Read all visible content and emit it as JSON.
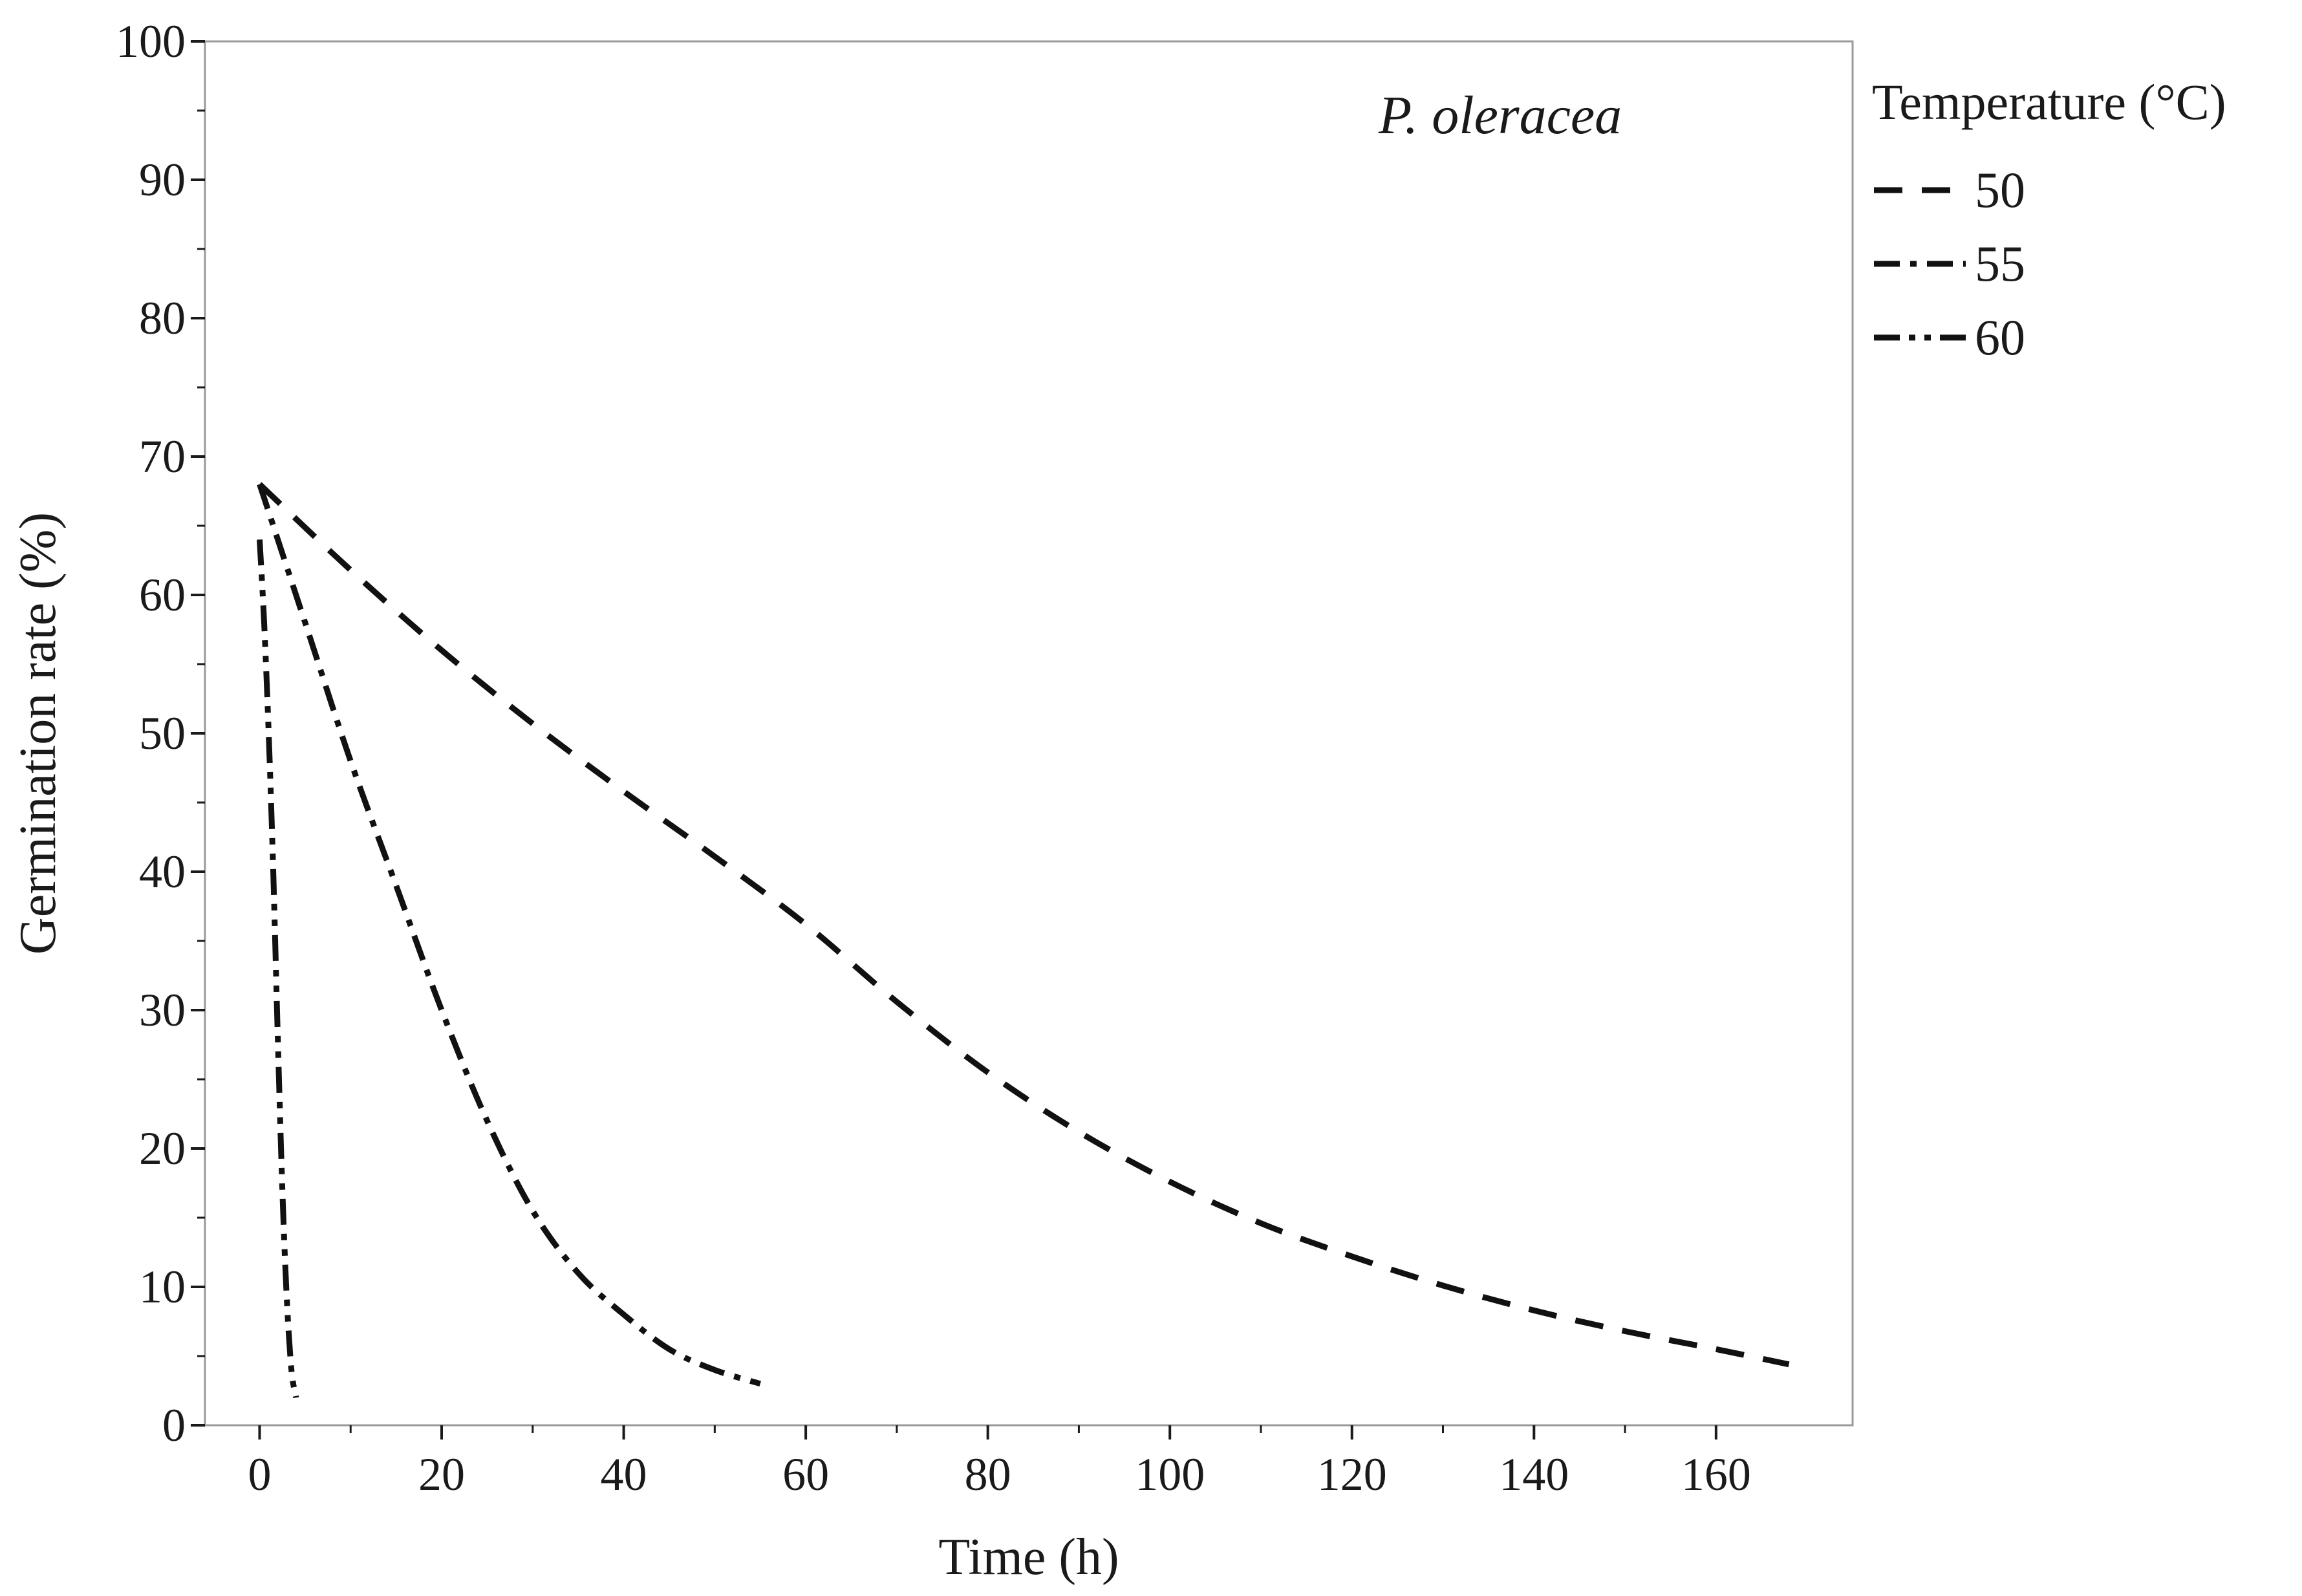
{
  "chart_data": {
    "type": "line",
    "title": "",
    "annotation": "P. oleracea",
    "xlabel": "Time (h)",
    "ylabel": "Germination rate (%)",
    "xlim": [
      -6,
      175
    ],
    "ylim": [
      0,
      100
    ],
    "xticks": [
      0,
      20,
      40,
      60,
      80,
      100,
      120,
      140,
      160
    ],
    "yticks": [
      0,
      10,
      20,
      30,
      40,
      50,
      60,
      70,
      80,
      90,
      100
    ],
    "legend": {
      "title": "Temperature (°C)",
      "placement": "right"
    },
    "series": [
      {
        "name": "50",
        "style": "dash",
        "x": [
          0,
          10,
          20,
          30,
          40,
          50,
          60,
          70,
          80,
          90,
          100,
          110,
          120,
          130,
          140,
          150,
          160,
          168
        ],
        "y": [
          68,
          61.8,
          56,
          50.7,
          45.8,
          41.1,
          36.2,
          30.6,
          25.5,
          21.2,
          17.6,
          14.6,
          12.2,
          10.1,
          8.3,
          6.8,
          5.5,
          4.4
        ]
      },
      {
        "name": "55",
        "style": "dash-dot",
        "x": [
          0,
          5,
          10,
          15,
          20,
          25,
          30,
          35,
          40,
          45,
          50,
          55
        ],
        "y": [
          68,
          58,
          48,
          39,
          30,
          22,
          15.5,
          11,
          8,
          5.5,
          4,
          3
        ]
      },
      {
        "name": "60",
        "style": "dash-dot-dot",
        "x": [
          0,
          0.5,
          1,
          1.5,
          2,
          2.5,
          3,
          3.5,
          4
        ],
        "y": [
          64,
          58,
          50,
          40,
          28,
          17,
          9,
          4,
          2
        ]
      }
    ]
  }
}
